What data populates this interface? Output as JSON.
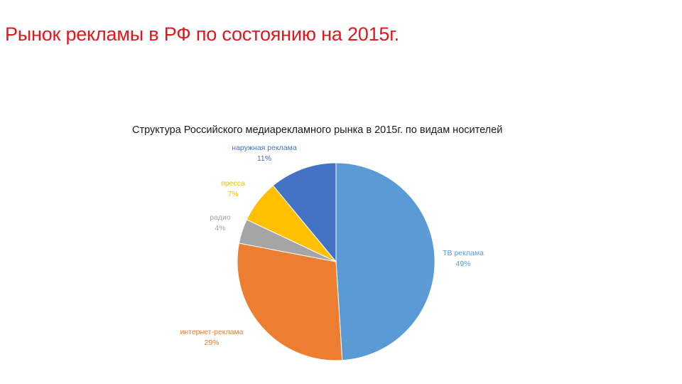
{
  "slide": {
    "title": "Рынок рекламы в РФ по состоянию на 2015г."
  },
  "chart_data": {
    "type": "pie",
    "title": "Структура Российского медиарекламного рынка в 2015г. по видам носителей",
    "slices": [
      {
        "label": "ТВ реклама",
        "value": 49,
        "value_label": "49%",
        "color": "#5b9bd5"
      },
      {
        "label": "интернет-реклама",
        "value": 29,
        "value_label": "29%",
        "color": "#ed7d31"
      },
      {
        "label": "радио",
        "value": 4,
        "value_label": "4%",
        "color": "#a5a5a5"
      },
      {
        "label": "пресса",
        "value": 7,
        "value_label": "7%",
        "color": "#ffc000"
      },
      {
        "label": "наружная реклама",
        "value": 11,
        "value_label": "11%",
        "color": "#4472c4"
      }
    ],
    "start": "12 o'clock",
    "direction": "clockwise",
    "data_labels": "outside",
    "legend": "none"
  }
}
